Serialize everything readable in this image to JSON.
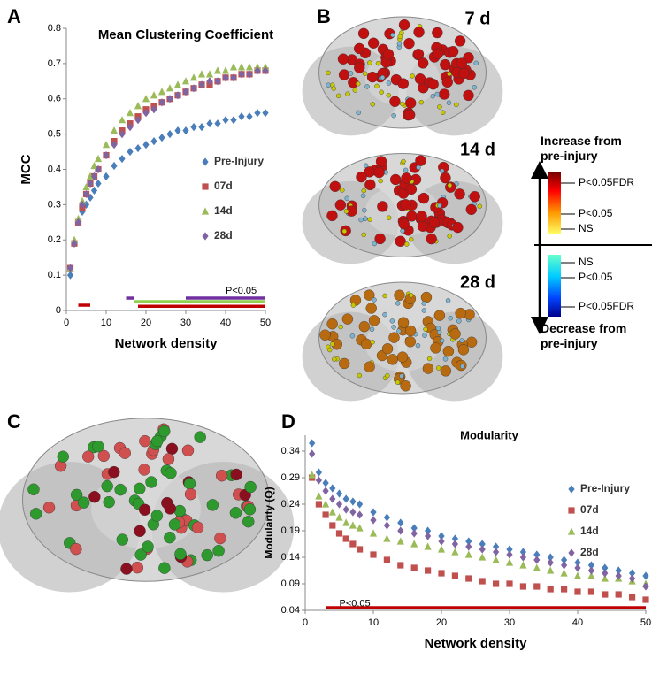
{
  "panels": {
    "a": "A",
    "b": "B",
    "c": "C",
    "d": "D"
  },
  "brain_labels": [
    "7 d",
    "14 d",
    "28 d"
  ],
  "colorbar": {
    "top": "Increase from\npre-injury",
    "bottom": "Decrease from\npre-injury",
    "labels": [
      "P<0.05FDR",
      "P<0.05",
      "NS",
      "NS",
      "P<0.05",
      "P<0.05FDR"
    ]
  },
  "chart_data": [
    {
      "type": "line",
      "title": "Mean Clustering Coefficient",
      "x_label": "Network density",
      "y_label": "MCC",
      "x": [
        1,
        2,
        3,
        4,
        5,
        6,
        7,
        8,
        10,
        12,
        14,
        16,
        18,
        20,
        22,
        24,
        26,
        28,
        30,
        32,
        34,
        36,
        38,
        40,
        42,
        44,
        46,
        48,
        50
      ],
      "xlim": [
        0,
        50
      ],
      "xticks": [
        0,
        10,
        20,
        30,
        40,
        50
      ],
      "ylim": [
        0,
        0.8
      ],
      "yticks": [
        0,
        0.1,
        0.2,
        0.3,
        0.4,
        0.5,
        0.6,
        0.7,
        0.8
      ],
      "legend": "right",
      "series": [
        {
          "name": "Pre-Injury",
          "color": "#4a7ebb",
          "marker": "diamond",
          "values": [
            0.1,
            0.19,
            0.25,
            0.28,
            0.3,
            0.32,
            0.34,
            0.36,
            0.38,
            0.41,
            0.43,
            0.45,
            0.46,
            0.47,
            0.48,
            0.49,
            0.5,
            0.51,
            0.51,
            0.52,
            0.52,
            0.53,
            0.53,
            0.54,
            0.54,
            0.55,
            0.55,
            0.56,
            0.56
          ]
        },
        {
          "name": "07d",
          "color": "#c0504d",
          "marker": "square",
          "values": [
            0.12,
            0.19,
            0.25,
            0.29,
            0.33,
            0.36,
            0.38,
            0.4,
            0.44,
            0.48,
            0.51,
            0.53,
            0.55,
            0.57,
            0.58,
            0.59,
            0.6,
            0.61,
            0.62,
            0.63,
            0.64,
            0.64,
            0.65,
            0.66,
            0.66,
            0.67,
            0.67,
            0.68,
            0.68
          ]
        },
        {
          "name": "14d",
          "color": "#9bbb59",
          "marker": "triangle",
          "values": [
            0.12,
            0.2,
            0.26,
            0.31,
            0.35,
            0.38,
            0.41,
            0.43,
            0.47,
            0.51,
            0.54,
            0.56,
            0.58,
            0.6,
            0.61,
            0.62,
            0.63,
            0.64,
            0.65,
            0.66,
            0.67,
            0.67,
            0.68,
            0.68,
            0.69,
            0.69,
            0.69,
            0.69,
            0.69
          ]
        },
        {
          "name": "28d",
          "color": "#8064a2",
          "marker": "diamond",
          "values": [
            0.12,
            0.19,
            0.25,
            0.3,
            0.33,
            0.36,
            0.38,
            0.4,
            0.44,
            0.47,
            0.5,
            0.52,
            0.54,
            0.56,
            0.57,
            0.59,
            0.6,
            0.61,
            0.62,
            0.63,
            0.64,
            0.65,
            0.65,
            0.66,
            0.66,
            0.67,
            0.67,
            0.68,
            0.68
          ]
        }
      ],
      "significance": [
        {
          "color": "#c00000",
          "x": [
            3,
            6
          ],
          "y": 0.015
        },
        {
          "color": "#7030a0",
          "x": [
            15,
            17
          ],
          "y": 0.035
        },
        {
          "color": "#92d050",
          "x": [
            17,
            50
          ],
          "y": 0.025
        },
        {
          "color": "#7030a0",
          "x": [
            30,
            50
          ],
          "y": 0.035
        },
        {
          "color": "#c00000",
          "x": [
            18,
            50
          ],
          "y": 0.012
        }
      ],
      "annotation": {
        "text": "P<0.05",
        "x": 40,
        "y": 0.055
      }
    },
    {
      "type": "line",
      "title": "Modularity",
      "x_label": "Network density",
      "y_label": "Modularity (Q)",
      "x": [
        1,
        2,
        3,
        4,
        5,
        6,
        7,
        8,
        10,
        12,
        14,
        16,
        18,
        20,
        22,
        24,
        26,
        28,
        30,
        32,
        34,
        36,
        38,
        40,
        42,
        44,
        46,
        48,
        50
      ],
      "xlim": [
        0,
        50
      ],
      "xticks": [
        0,
        10,
        20,
        30,
        40,
        50
      ],
      "ylim": [
        0.04,
        0.37
      ],
      "yticks": [
        0.04,
        0.09,
        0.14,
        0.19,
        0.24,
        0.29,
        0.34
      ],
      "legend": "upper right",
      "series": [
        {
          "name": "Pre-Injury",
          "color": "#4a7ebb",
          "marker": "diamond",
          "values": [
            0.355,
            0.3,
            0.28,
            0.27,
            0.26,
            0.25,
            0.245,
            0.24,
            0.225,
            0.215,
            0.205,
            0.195,
            0.19,
            0.18,
            0.175,
            0.17,
            0.165,
            0.16,
            0.155,
            0.15,
            0.145,
            0.14,
            0.135,
            0.13,
            0.125,
            0.12,
            0.115,
            0.11,
            0.105
          ]
        },
        {
          "name": "07d",
          "color": "#c0504d",
          "marker": "square",
          "values": [
            0.29,
            0.24,
            0.22,
            0.2,
            0.185,
            0.175,
            0.165,
            0.155,
            0.145,
            0.135,
            0.125,
            0.12,
            0.115,
            0.11,
            0.105,
            0.1,
            0.095,
            0.09,
            0.09,
            0.085,
            0.085,
            0.08,
            0.08,
            0.075,
            0.075,
            0.07,
            0.07,
            0.065,
            0.06
          ]
        },
        {
          "name": "14d",
          "color": "#9bbb59",
          "marker": "triangle",
          "values": [
            0.295,
            0.255,
            0.24,
            0.225,
            0.215,
            0.205,
            0.2,
            0.195,
            0.185,
            0.175,
            0.17,
            0.165,
            0.16,
            0.155,
            0.15,
            0.145,
            0.14,
            0.135,
            0.13,
            0.125,
            0.12,
            0.115,
            0.11,
            0.105,
            0.105,
            0.1,
            0.1,
            0.095,
            0.09
          ]
        },
        {
          "name": "28d",
          "color": "#8064a2",
          "marker": "diamond",
          "values": [
            0.335,
            0.285,
            0.265,
            0.25,
            0.24,
            0.23,
            0.225,
            0.22,
            0.21,
            0.2,
            0.19,
            0.185,
            0.18,
            0.17,
            0.165,
            0.16,
            0.155,
            0.15,
            0.145,
            0.14,
            0.135,
            0.13,
            0.125,
            0.12,
            0.115,
            0.11,
            0.105,
            0.1,
            0.085
          ]
        }
      ],
      "significance": [
        {
          "color": "#c00000",
          "x": [
            3,
            50
          ],
          "y": 0.045
        }
      ],
      "annotation": {
        "text": "P<0.05",
        "x": 5,
        "y": 0.052
      }
    }
  ]
}
